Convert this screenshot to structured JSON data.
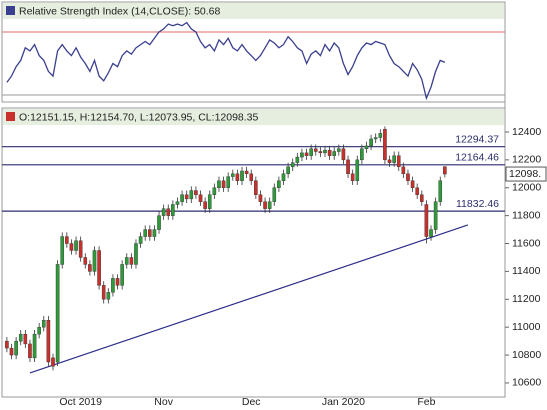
{
  "chart_data": [
    {
      "type": "line",
      "title": "Relative Strength Index (14,CLOSE): 50.68",
      "ylim": [
        25,
        80
      ],
      "levels": [
        {
          "value": 70,
          "color": "#e36a6a"
        },
        {
          "value": 30,
          "color": "#999999"
        }
      ],
      "series": [
        {
          "color": "#3b3f8f",
          "values": [
            38,
            42,
            48,
            52,
            60,
            58,
            62,
            55,
            52,
            45,
            42,
            58,
            62,
            58,
            55,
            60,
            54,
            50,
            45,
            52,
            42,
            39,
            44,
            50,
            48,
            55,
            58,
            56,
            60,
            62,
            64,
            62,
            66,
            70,
            72,
            75,
            74,
            75,
            74,
            76,
            72,
            70,
            64,
            60,
            62,
            58,
            65,
            62,
            66,
            60,
            58,
            62,
            58,
            55,
            52,
            55,
            60,
            65,
            63,
            60,
            62,
            67,
            64,
            60,
            58,
            50,
            56,
            58,
            55,
            62,
            58,
            63,
            60,
            50,
            43,
            48,
            55,
            60,
            63,
            62,
            64,
            63,
            62,
            55,
            50,
            48,
            45,
            42,
            50,
            46,
            40,
            28,
            35,
            45,
            52,
            50.68
          ]
        }
      ]
    },
    {
      "type": "candlestick",
      "title": "O:12151.15, H:12154.70, L:12073.95, CL:12098.35",
      "categories": [
        null,
        null,
        null,
        null,
        null,
        null,
        null,
        null,
        null,
        null,
        null,
        null,
        null,
        null,
        null,
        null,
        "Oct 2019",
        null,
        null,
        null,
        null,
        null,
        null,
        null,
        null,
        null,
        null,
        null,
        null,
        null,
        null,
        null,
        null,
        null,
        "Nov",
        null,
        null,
        null,
        null,
        null,
        null,
        null,
        null,
        null,
        null,
        null,
        null,
        null,
        null,
        null,
        null,
        null,
        null,
        "Dec",
        null,
        null,
        null,
        null,
        null,
        null,
        null,
        null,
        null,
        null,
        null,
        null,
        null,
        null,
        null,
        null,
        null,
        null,
        null,
        "Jan 2020",
        null,
        null,
        null,
        null,
        null,
        null,
        null,
        null,
        null,
        null,
        null,
        null,
        null,
        null,
        null,
        null,
        null,
        "Feb",
        null,
        null,
        null,
        null
      ],
      "open": [
        10900,
        10850,
        10800,
        10900,
        10950,
        10880,
        10780,
        10950,
        11000,
        11050,
        10780,
        10750,
        11450,
        11650,
        11600,
        11550,
        11620,
        11500,
        11450,
        11400,
        11550,
        11300,
        11200,
        11250,
        11350,
        11300,
        11450,
        11500,
        11450,
        11600,
        11650,
        11700,
        11650,
        11700,
        11800,
        11850,
        11800,
        11880,
        11900,
        11950,
        11920,
        11980,
        11950,
        11900,
        11850,
        11950,
        12000,
        12050,
        12000,
        12080,
        12100,
        12050,
        12120,
        12100,
        12050,
        11950,
        11900,
        11850,
        11900,
        12000,
        12050,
        12100,
        12150,
        12180,
        12220,
        12250,
        12230,
        12280,
        12260,
        12250,
        12270,
        12230,
        12260,
        12280,
        12200,
        12100,
        12050,
        12200,
        12280,
        12300,
        12350,
        12360,
        12420,
        12200,
        12180,
        12230,
        12150,
        12100,
        12050,
        12000,
        11950,
        11880,
        11650,
        11700,
        11900,
        12151.15
      ],
      "high": [
        10930,
        10880,
        10930,
        10980,
        10980,
        10910,
        10980,
        11030,
        11080,
        11080,
        10810,
        11480,
        11680,
        11680,
        11630,
        11650,
        11650,
        11530,
        11480,
        11580,
        11580,
        11330,
        11280,
        11380,
        11380,
        11480,
        11530,
        11530,
        11630,
        11680,
        11730,
        11730,
        11730,
        11830,
        11880,
        11880,
        11910,
        11930,
        11980,
        11980,
        12010,
        12010,
        11980,
        11930,
        11980,
        12030,
        12080,
        12080,
        12110,
        12130,
        12130,
        12150,
        12150,
        12130,
        12080,
        11980,
        11930,
        11930,
        12030,
        12080,
        12130,
        12180,
        12210,
        12250,
        12280,
        12280,
        12310,
        12310,
        12290,
        12300,
        12300,
        12290,
        12310,
        12310,
        12230,
        12130,
        12230,
        12310,
        12330,
        12380,
        12390,
        12420,
        12440,
        12230,
        12260,
        12260,
        12180,
        12130,
        12080,
        12030,
        11980,
        11910,
        11730,
        11930,
        12080,
        12154.7
      ],
      "low": [
        10820,
        10770,
        10770,
        10870,
        10850,
        10750,
        10750,
        10920,
        10970,
        10720,
        10690,
        10720,
        11420,
        11570,
        11520,
        11520,
        11470,
        11420,
        11370,
        11370,
        11270,
        11170,
        11170,
        11220,
        11270,
        11270,
        11420,
        11420,
        11420,
        11570,
        11620,
        11620,
        11620,
        11670,
        11770,
        11770,
        11770,
        11850,
        11870,
        11890,
        11890,
        11920,
        11870,
        11820,
        11820,
        11920,
        11970,
        11970,
        11970,
        12050,
        12020,
        12020,
        12070,
        12020,
        11920,
        11870,
        11820,
        11820,
        11870,
        11970,
        12020,
        12070,
        12120,
        12150,
        12190,
        12200,
        12200,
        12230,
        12220,
        12220,
        12200,
        12200,
        12230,
        12170,
        12070,
        12020,
        12020,
        12170,
        12250,
        12270,
        12320,
        12330,
        12170,
        12150,
        12150,
        12120,
        12070,
        12020,
        11970,
        11920,
        11870,
        11600,
        11620,
        11670,
        11870,
        12073.95
      ],
      "close": [
        10850,
        10800,
        10900,
        10950,
        10880,
        10780,
        10950,
        11000,
        11050,
        10750,
        10720,
        11450,
        11650,
        11600,
        11550,
        11620,
        11500,
        11450,
        11400,
        11550,
        11300,
        11200,
        11250,
        11350,
        11300,
        11450,
        11500,
        11450,
        11600,
        11650,
        11700,
        11650,
        11700,
        11800,
        11850,
        11800,
        11880,
        11900,
        11950,
        11920,
        11980,
        11950,
        11900,
        11850,
        11950,
        12000,
        12050,
        12000,
        12080,
        12100,
        12050,
        12120,
        12100,
        12050,
        11950,
        11900,
        11850,
        11900,
        12000,
        12050,
        12100,
        12150,
        12180,
        12220,
        12250,
        12230,
        12280,
        12260,
        12250,
        12270,
        12230,
        12260,
        12280,
        12200,
        12100,
        12050,
        12200,
        12280,
        12300,
        12350,
        12360,
        12390,
        12200,
        12180,
        12230,
        12150,
        12100,
        12050,
        12000,
        11950,
        11900,
        11650,
        11700,
        11900,
        12050,
        12098.35
      ],
      "up_color": "#2f9a3a",
      "down_color": "#c8302c",
      "wick_color": "#333333",
      "ylim": [
        10500,
        12450
      ],
      "yticks": [
        12400,
        12200,
        12000,
        11800,
        11600,
        11400,
        11200,
        11000,
        10800,
        10600
      ],
      "levels": [
        {
          "value": 12294.37,
          "color": "#2b2d6e"
        },
        {
          "value": 12164.46,
          "color": "#2b2d6e"
        },
        {
          "value": 11832.46,
          "color": "#2b2d6e"
        }
      ],
      "trendline": {
        "start_index": 5,
        "start_value": 10672,
        "end_index": 100,
        "end_value": 11733,
        "color": "#2b2d8a"
      },
      "last_price_label": "12098."
    }
  ]
}
